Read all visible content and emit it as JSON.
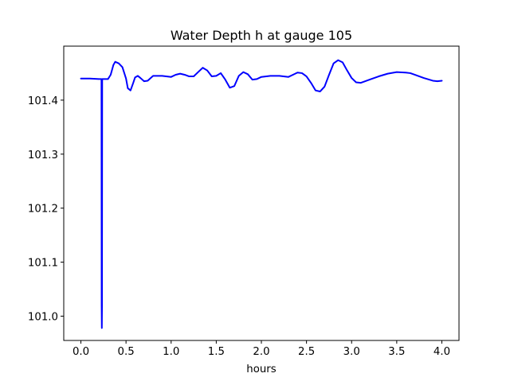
{
  "chart_data": {
    "type": "line",
    "title": "Water Depth h at gauge 105",
    "xlabel": "hours",
    "ylabel": "",
    "xlim": [
      -0.19,
      4.19
    ],
    "ylim": [
      100.955,
      101.5
    ],
    "xticks": [
      0.0,
      0.5,
      1.0,
      1.5,
      2.0,
      2.5,
      3.0,
      3.5,
      4.0
    ],
    "xtick_labels": [
      "0.0",
      "0.5",
      "1.0",
      "1.5",
      "2.0",
      "2.5",
      "3.0",
      "3.5",
      "4.0"
    ],
    "yticks": [
      101.0,
      101.1,
      101.2,
      101.3,
      101.4
    ],
    "ytick_labels": [
      "101.0",
      "101.1",
      "101.2",
      "101.3",
      "101.4"
    ],
    "grid": false,
    "legend": "none",
    "series": [
      {
        "color": "#0000ff",
        "x": [
          0.0,
          0.1,
          0.2,
          0.228,
          0.23,
          0.232,
          0.234,
          0.236,
          0.24,
          0.245,
          0.3,
          0.33,
          0.36,
          0.38,
          0.42,
          0.46,
          0.5,
          0.52,
          0.55,
          0.58,
          0.6,
          0.63,
          0.66,
          0.7,
          0.74,
          0.8,
          0.9,
          1.0,
          1.05,
          1.1,
          1.15,
          1.2,
          1.25,
          1.3,
          1.35,
          1.4,
          1.45,
          1.5,
          1.55,
          1.6,
          1.65,
          1.7,
          1.75,
          1.8,
          1.85,
          1.9,
          1.95,
          2.0,
          2.1,
          2.2,
          2.3,
          2.35,
          2.4,
          2.45,
          2.5,
          2.55,
          2.6,
          2.65,
          2.7,
          2.75,
          2.8,
          2.85,
          2.9,
          2.95,
          3.0,
          3.05,
          3.1,
          3.2,
          3.3,
          3.4,
          3.5,
          3.6,
          3.65,
          3.7,
          3.8,
          3.9,
          3.95,
          4.0
        ],
        "y": [
          101.44,
          101.44,
          101.439,
          101.439,
          101.02,
          100.978,
          101.02,
          101.439,
          101.439,
          101.439,
          101.439,
          101.447,
          101.465,
          101.471,
          101.468,
          101.461,
          101.44,
          101.422,
          101.418,
          101.432,
          101.442,
          101.445,
          101.441,
          101.435,
          101.436,
          101.445,
          101.445,
          101.443,
          101.447,
          101.449,
          101.447,
          101.444,
          101.444,
          101.452,
          101.46,
          101.455,
          101.444,
          101.445,
          101.45,
          101.438,
          101.423,
          101.426,
          101.445,
          101.452,
          101.448,
          101.438,
          101.439,
          101.443,
          101.445,
          101.445,
          101.443,
          101.447,
          101.451,
          101.45,
          101.444,
          101.432,
          101.418,
          101.416,
          101.425,
          101.447,
          101.468,
          101.474,
          101.47,
          101.455,
          101.441,
          101.433,
          101.432,
          101.438,
          101.444,
          101.449,
          101.452,
          101.451,
          101.45,
          101.447,
          101.441,
          101.436,
          101.435,
          101.436
        ]
      }
    ]
  }
}
